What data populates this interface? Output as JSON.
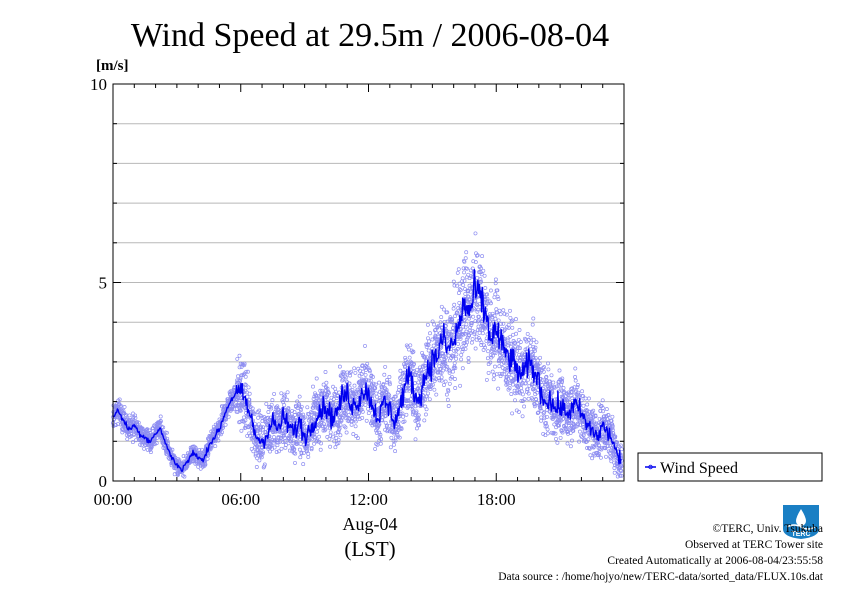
{
  "chart_data": {
    "type": "line",
    "title": "Wind Speed at 29.5m / 2006-08-04",
    "ylabel": "[m/s]",
    "xlabel": "Aug-04",
    "xlabel2": "(LST)",
    "xlim": [
      0,
      24
    ],
    "ylim": [
      0,
      10
    ],
    "x_ticks": [
      0,
      6,
      12,
      18
    ],
    "x_tick_labels": [
      "00:00",
      "06:00",
      "12:00",
      "18:00"
    ],
    "y_ticks": [
      0,
      5,
      10
    ],
    "y_tick_labels": [
      "0",
      "5",
      "10"
    ],
    "grid": true,
    "legend": "right",
    "series": [
      {
        "name": "Wind Speed",
        "color": "#0000ee",
        "scatter_color": "#7a7aee",
        "x": [
          0.0,
          0.25,
          0.5,
          0.75,
          1.0,
          1.25,
          1.5,
          1.75,
          2.0,
          2.25,
          2.5,
          2.75,
          3.0,
          3.25,
          3.5,
          3.75,
          4.0,
          4.25,
          4.5,
          4.75,
          5.0,
          5.25,
          5.5,
          5.75,
          6.0,
          6.25,
          6.5,
          6.75,
          7.0,
          7.25,
          7.5,
          7.75,
          8.0,
          8.25,
          8.5,
          8.75,
          9.0,
          9.25,
          9.5,
          9.75,
          10.0,
          10.25,
          10.5,
          10.75,
          11.0,
          11.25,
          11.5,
          11.75,
          12.0,
          12.25,
          12.5,
          12.75,
          13.0,
          13.25,
          13.5,
          13.75,
          14.0,
          14.25,
          14.5,
          14.75,
          15.0,
          15.25,
          15.5,
          15.75,
          16.0,
          16.25,
          16.5,
          16.75,
          17.0,
          17.25,
          17.5,
          17.75,
          18.0,
          18.25,
          18.5,
          18.75,
          19.0,
          19.25,
          19.5,
          19.75,
          20.0,
          20.25,
          20.5,
          20.75,
          21.0,
          21.25,
          21.5,
          21.75,
          22.0,
          22.25,
          22.5,
          22.75,
          23.0,
          23.25,
          23.5,
          23.75
        ],
        "values": [
          1.6,
          1.8,
          1.5,
          1.3,
          1.4,
          1.2,
          1.1,
          1.0,
          1.2,
          1.3,
          0.9,
          0.6,
          0.4,
          0.3,
          0.5,
          0.7,
          0.6,
          0.5,
          0.9,
          1.1,
          1.3,
          1.7,
          2.0,
          2.2,
          2.2,
          2.0,
          1.5,
          1.1,
          1.0,
          1.2,
          1.5,
          1.3,
          1.6,
          1.4,
          1.2,
          1.5,
          1.1,
          1.3,
          1.6,
          1.8,
          1.9,
          1.6,
          1.7,
          2.1,
          2.2,
          1.9,
          2.0,
          2.3,
          2.2,
          1.8,
          1.6,
          2.0,
          1.8,
          1.5,
          1.9,
          2.5,
          2.6,
          2.0,
          2.3,
          2.8,
          3.0,
          3.2,
          3.6,
          3.3,
          3.5,
          3.9,
          4.5,
          4.2,
          4.8,
          4.6,
          4.2,
          3.6,
          3.8,
          3.4,
          3.2,
          3.0,
          2.8,
          2.6,
          3.0,
          2.8,
          2.5,
          2.0,
          2.1,
          1.8,
          1.9,
          1.7,
          1.8,
          1.9,
          1.7,
          1.4,
          1.3,
          1.1,
          1.4,
          1.2,
          1.0,
          0.5
        ]
      }
    ]
  },
  "credits": {
    "copyright": "©TERC, Univ. Tsukuba",
    "site": "Observed at TERC Tower site",
    "created": "Created Automatically at 2006-08-04/23:55:58",
    "source": "Data source : /home/hojyo/new/TERC-data/sorted_data/FLUX.10s.dat"
  },
  "logo": {
    "text": "TERC"
  }
}
